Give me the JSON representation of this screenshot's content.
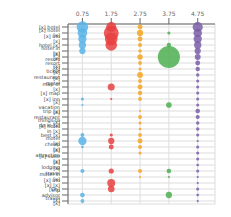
{
  "chart_data": {
    "type": "scatter",
    "title": "",
    "grid": true,
    "xlim": [
      0.25,
      5.35
    ],
    "xticks": [
      0.75,
      1.75,
      2.75,
      3.75,
      4.75
    ],
    "categories": [
      "[x] hotel",
      "[x] hotel [x]",
      "[x] inn [x]",
      "hotel [x]",
      "hotel in [x]",
      "[x] resort",
      "[x] resort [x]",
      "[x] ticket",
      "[x] restaurant",
      "[x] motel",
      "map of [x]",
      "[x] map",
      "[x] inn",
      "[x] vacation",
      "trip [x]",
      "[x] restaurant [x]",
      "things to do in [x]",
      "[x] hotel in [x]",
      "best [x]",
      "motel [x]",
      "cheap [x]",
      "[x] attraction",
      "[x] suite [x]",
      "[x] lodging",
      "[x] travel",
      "motel in [x]",
      "[x] inn [x] [x]",
      "[Oh]",
      "trip advisor [x]",
      "travel [x]"
    ],
    "points": [
      {
        "x": [
          0.75,
          1.75,
          2.75,
          4.75
        ],
        "sizes": [
          55,
          42,
          10,
          42
        ],
        "colors": [
          "#5bb4e8",
          "#e84040",
          "#f5a623",
          "#7b5ea7"
        ]
      },
      {
        "x": [
          0.75,
          1.75,
          2.75,
          3.75,
          4.75
        ],
        "sizes": [
          38,
          90,
          16,
          4,
          30
        ],
        "colors": [
          "#5bb4e8",
          "#e84040",
          "#f5a623",
          "#4caf50",
          "#7b5ea7"
        ]
      },
      {
        "x": [
          0.75,
          1.75,
          2.75,
          4.75
        ],
        "sizes": [
          28,
          65,
          10,
          28
        ],
        "colors": [
          "#5bb4e8",
          "#e84040",
          "#f5a623",
          "#7b5ea7"
        ]
      },
      {
        "x": [
          0.75,
          1.75,
          2.75,
          3.75,
          4.75
        ],
        "sizes": [
          22,
          55,
          7,
          8,
          22
        ],
        "colors": [
          "#5bb4e8",
          "#e84040",
          "#f5a623",
          "#4caf50",
          "#7b5ea7"
        ]
      },
      {
        "x": [
          0.75,
          2.75,
          4.75
        ],
        "sizes": [
          16,
          5,
          16
        ],
        "colors": [
          "#5bb4e8",
          "#f5a623",
          "#7b5ea7"
        ]
      },
      {
        "x": [
          2.75,
          3.75,
          4.75
        ],
        "sizes": [
          12,
          200,
          14
        ],
        "colors": [
          "#f5a623",
          "#4caf50",
          "#7b5ea7"
        ]
      },
      {
        "x": [
          2.75,
          4.75
        ],
        "sizes": [
          6,
          10
        ],
        "colors": [
          "#f5a623",
          "#7b5ea7"
        ]
      },
      {
        "x": [
          2.75,
          4.75
        ],
        "sizes": [
          4,
          8
        ],
        "colors": [
          "#f5a623",
          "#7b5ea7"
        ]
      },
      {
        "x": [
          2.75,
          4.75
        ],
        "sizes": [
          14,
          5
        ],
        "colors": [
          "#f5a623",
          "#7b5ea7"
        ]
      },
      {
        "x": [
          2.75,
          4.75
        ],
        "sizes": [
          6,
          4
        ],
        "colors": [
          "#f5a623",
          "#7b5ea7"
        ]
      },
      {
        "x": [
          1.75,
          2.75,
          4.75
        ],
        "sizes": [
          20,
          10,
          4
        ],
        "colors": [
          "#e84040",
          "#f5a623",
          "#7b5ea7"
        ]
      },
      {
        "x": [
          2.75,
          4.75
        ],
        "sizes": [
          8,
          4
        ],
        "colors": [
          "#f5a623",
          "#7b5ea7"
        ]
      },
      {
        "x": [
          0.75,
          1.75,
          2.75,
          4.75
        ],
        "sizes": [
          4,
          2,
          6,
          4
        ],
        "colors": [
          "#5bb4e8",
          "#e84040",
          "#f5a623",
          "#7b5ea7"
        ]
      },
      {
        "x": [
          0.75,
          3.75,
          4.75
        ],
        "sizes": [
          2,
          13,
          4
        ],
        "colors": [
          "#5bb4e8",
          "#4caf50",
          "#7b5ea7"
        ]
      },
      {
        "x": [
          2.75,
          4.75
        ],
        "sizes": [
          2,
          9
        ],
        "colors": [
          "#f5a623",
          "#7b5ea7"
        ]
      },
      {
        "x": [
          2.75,
          4.75
        ],
        "sizes": [
          6,
          7
        ],
        "colors": [
          "#f5a623",
          "#7b5ea7"
        ]
      },
      {
        "x": [
          2.75,
          4.75
        ],
        "sizes": [
          4,
          5
        ],
        "colors": [
          "#f5a623",
          "#7b5ea7"
        ]
      },
      {
        "x": [
          2.75,
          4.75
        ],
        "sizes": [
          3,
          5
        ],
        "colors": [
          "#f5a623",
          "#7b5ea7"
        ]
      },
      {
        "x": [
          0.75,
          1.75,
          2.75,
          4.75
        ],
        "sizes": [
          6,
          4,
          6,
          4
        ],
        "colors": [
          "#5bb4e8",
          "#e84040",
          "#f5a623",
          "#7b5ea7"
        ]
      },
      {
        "x": [
          0.75,
          1.75,
          2.75,
          4.75
        ],
        "sizes": [
          28,
          16,
          10,
          2
        ],
        "colors": [
          "#5bb4e8",
          "#e84040",
          "#f5a623",
          "#7b5ea7"
        ]
      },
      {
        "x": [
          0.75,
          1.75,
          2.75,
          4.75
        ],
        "sizes": [
          3,
          10,
          7,
          4
        ],
        "colors": [
          "#5bb4e8",
          "#e84040",
          "#f5a623",
          "#7b5ea7"
        ]
      },
      {
        "x": [
          2.75,
          4.75
        ],
        "sizes": [
          4,
          4
        ],
        "colors": [
          "#f5a623",
          "#7b5ea7"
        ]
      },
      {
        "x": [
          4.75
        ],
        "sizes": [
          4
        ],
        "colors": [
          "#7b5ea7"
        ]
      },
      {
        "x": [
          4.75
        ],
        "sizes": [
          3
        ],
        "colors": [
          "#7b5ea7"
        ]
      },
      {
        "x": [
          0.75,
          1.75,
          2.75,
          3.75,
          4.75
        ],
        "sizes": [
          7,
          11,
          7,
          9,
          4
        ],
        "colors": [
          "#5bb4e8",
          "#e84040",
          "#f5a623",
          "#4caf50",
          "#7b5ea7"
        ]
      },
      {
        "x": [
          2.75,
          3.75,
          4.75
        ],
        "sizes": [
          2,
          2,
          2
        ],
        "colors": [
          "#f5a623",
          "#4caf50",
          "#7b5ea7"
        ]
      },
      {
        "x": [
          1.75,
          4.75
        ],
        "sizes": [
          26,
          2
        ],
        "colors": [
          "#e84040",
          "#7b5ea7"
        ]
      },
      {
        "x": [
          1.75,
          4.75
        ],
        "sizes": [
          18,
          4
        ],
        "colors": [
          "#e84040",
          "#7b5ea7"
        ]
      },
      {
        "x": [
          0.75,
          3.75,
          4.75
        ],
        "sizes": [
          9,
          16,
          3
        ],
        "colors": [
          "#5bb4e8",
          "#4caf50",
          "#7b5ea7"
        ]
      },
      {
        "x": [
          0.75,
          4.75
        ],
        "sizes": [
          6,
          2
        ],
        "colors": [
          "#5bb4e8",
          "#7b5ea7"
        ]
      }
    ]
  }
}
